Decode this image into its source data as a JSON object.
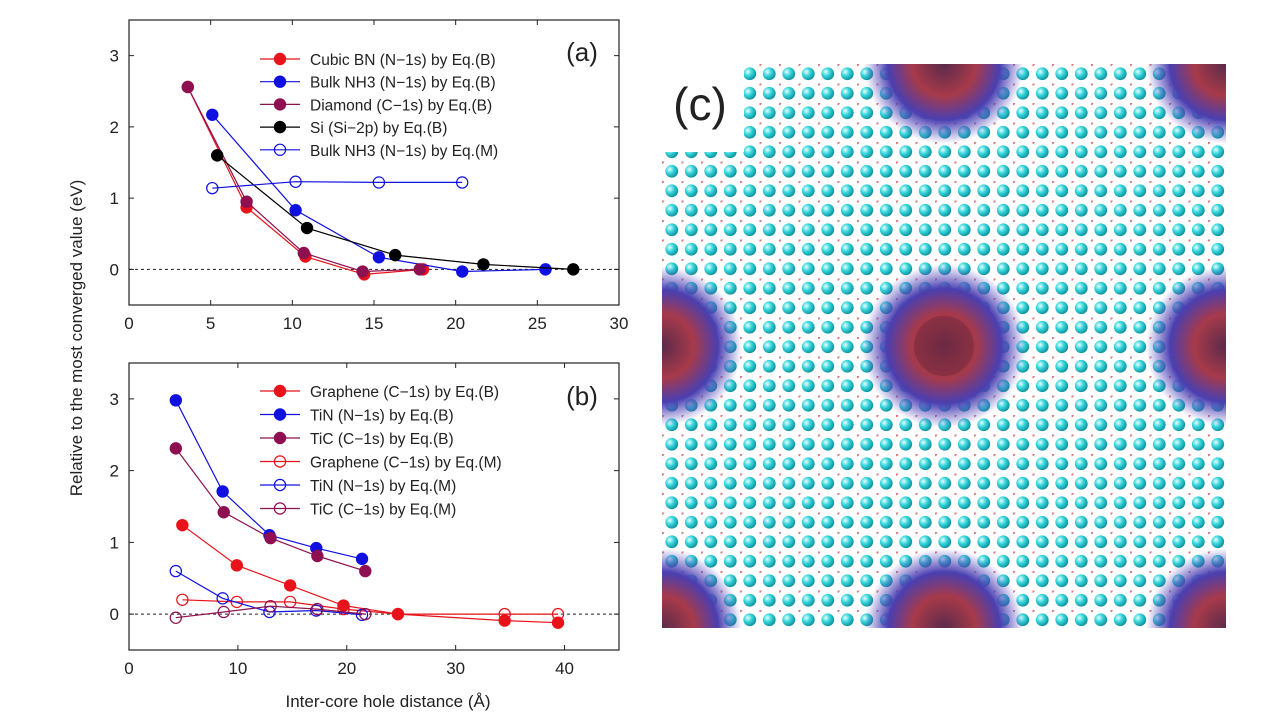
{
  "figure": {
    "ylabel": "Relative to the most converged value (eV)",
    "xlabel": "Inter-core hole distance (Å)"
  },
  "panel_c": {
    "label": "(c)"
  },
  "chart_data": [
    {
      "type": "line",
      "panel": "(a)",
      "xlim": [
        0,
        30
      ],
      "ylim": [
        -0.5,
        3.5
      ],
      "xticks": [
        "0",
        "5",
        "10",
        "15",
        "20",
        "25",
        "30"
      ],
      "yticks": [
        "0",
        "1",
        "2",
        "3"
      ],
      "grid": false,
      "zero_line": "dashed",
      "legend_placement": "top-right",
      "series": [
        {
          "name": "Cubic BN (N−1s) by Eq.(B)",
          "color": "#e8131a",
          "marker": "filled",
          "x": [
            3.6,
            7.2,
            10.8,
            14.4,
            18.0
          ],
          "y": [
            2.56,
            0.87,
            0.18,
            -0.07,
            0.0
          ]
        },
        {
          "name": "Bulk NH3 (N−1s) by Eq.(B)",
          "color": "#1010e0",
          "marker": "filled",
          "x": [
            5.1,
            10.2,
            15.3,
            20.4,
            25.5
          ],
          "y": [
            2.17,
            0.83,
            0.17,
            -0.03,
            0.0
          ]
        },
        {
          "name": "Diamond (C−1s) by Eq.(B)",
          "color": "#8e1050",
          "marker": "filled",
          "x": [
            3.6,
            7.2,
            10.7,
            14.3,
            17.8
          ],
          "y": [
            2.56,
            0.95,
            0.23,
            -0.03,
            0.0
          ]
        },
        {
          "name": "Si (Si−2p) by Eq.(B)",
          "color": "#000000",
          "marker": "filled",
          "x": [
            5.4,
            10.9,
            16.3,
            21.7,
            27.2
          ],
          "y": [
            1.6,
            0.58,
            0.2,
            0.07,
            0.0
          ]
        },
        {
          "name": "Bulk NH3  (N−1s) by Eq.(M)",
          "color": "#1010e0",
          "marker": "open",
          "x": [
            5.1,
            10.2,
            15.3,
            20.4
          ],
          "y": [
            1.14,
            1.23,
            1.22,
            1.22
          ]
        }
      ]
    },
    {
      "type": "line",
      "panel": "(b)",
      "xlim": [
        0,
        45
      ],
      "ylim": [
        -0.5,
        3.5
      ],
      "xticks": [
        "0",
        "10",
        "20",
        "30",
        "40"
      ],
      "yticks": [
        "0",
        "1",
        "2",
        "3"
      ],
      "grid": false,
      "zero_line": "dashed",
      "legend_placement": "top-right",
      "series": [
        {
          "name": "Graphene (C−1s) by Eq.(B)",
          "color": "#e8131a",
          "marker": "filled",
          "x": [
            4.9,
            9.9,
            14.8,
            19.7,
            24.7,
            34.5,
            39.4
          ],
          "y": [
            1.24,
            0.68,
            0.4,
            0.12,
            0.0,
            -0.09,
            -0.12
          ]
        },
        {
          "name": "TiN (N−1s) by Eq.(B)",
          "color": "#1010e0",
          "marker": "filled",
          "x": [
            4.3,
            8.6,
            12.9,
            17.2,
            21.4
          ],
          "y": [
            2.98,
            1.71,
            1.1,
            0.92,
            0.77
          ]
        },
        {
          "name": "TiC (C−1s) by Eq.(B)",
          "color": "#8e1050",
          "marker": "filled",
          "x": [
            4.3,
            8.7,
            13.0,
            17.3,
            21.7
          ],
          "y": [
            2.31,
            1.42,
            1.06,
            0.81,
            0.6
          ]
        },
        {
          "name": "Graphene (C−1s) by Eq.(M)",
          "color": "#e8131a",
          "marker": "open",
          "x": [
            4.9,
            9.9,
            14.8,
            19.7,
            24.7,
            34.5,
            39.4
          ],
          "y": [
            0.2,
            0.17,
            0.17,
            0.07,
            0.0,
            0.0,
            0.0
          ]
        },
        {
          "name": "TiN (N−1s) by Eq.(M)",
          "color": "#1010e0",
          "marker": "open",
          "x": [
            4.3,
            8.6,
            12.9,
            17.2,
            21.4
          ],
          "y": [
            0.6,
            0.22,
            0.03,
            0.05,
            -0.01
          ]
        },
        {
          "name": "TiC (C−1s) by Eq.(M)",
          "color": "#8e1050",
          "marker": "open",
          "x": [
            4.3,
            8.7,
            13.0,
            17.3,
            21.7
          ],
          "y": [
            -0.05,
            0.03,
            0.11,
            0.07,
            0.0
          ]
        }
      ]
    }
  ]
}
